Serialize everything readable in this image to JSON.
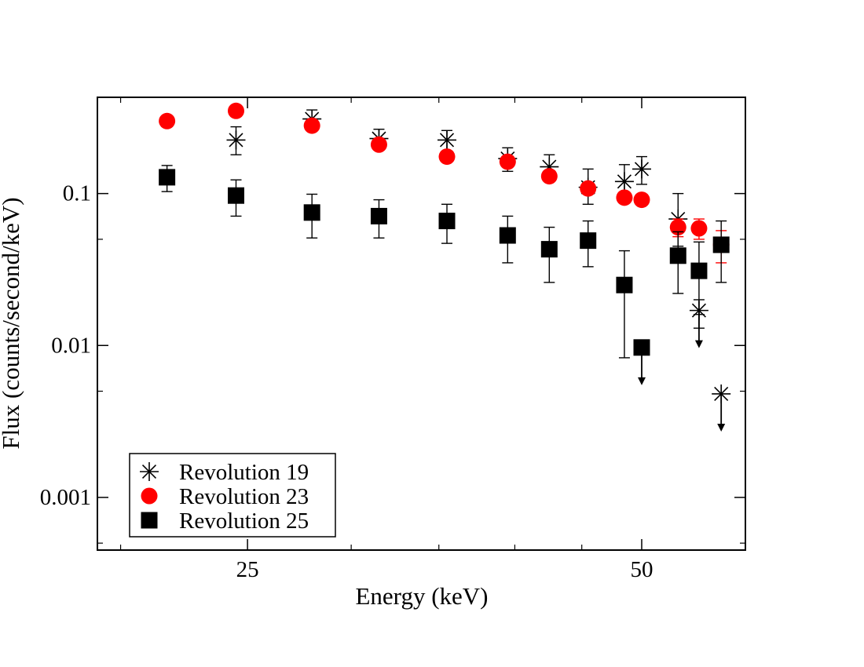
{
  "chart_data": {
    "type": "scatter",
    "title": "",
    "xlabel": "Energy (keV)",
    "ylabel": "Flux (counts/second/keV)",
    "x_scale": "log",
    "y_scale": "log",
    "xlim": [
      19.2,
      60
    ],
    "ylim": [
      0.00045,
      0.43
    ],
    "x_ticks": [
      {
        "value": 25,
        "label": "25"
      },
      {
        "value": 50,
        "label": "50"
      }
    ],
    "x_minor_ticks": [
      20,
      30,
      35,
      40,
      45
    ],
    "y_ticks": [
      {
        "value": 0.001,
        "label": "0.001"
      },
      {
        "value": 0.01,
        "label": "0.01"
      },
      {
        "value": 0.1,
        "label": "0.1"
      }
    ],
    "legend_position": "bottom-left",
    "series": [
      {
        "name": "Revolution 19",
        "marker": "asterisk",
        "color": "#000000",
        "points": [
          {
            "x": 24.5,
            "y": 0.225,
            "lo": 0.18,
            "hi": 0.275
          },
          {
            "x": 28.0,
            "y": 0.31,
            "lo": 0.27,
            "hi": 0.355
          },
          {
            "x": 31.5,
            "y": 0.23,
            "lo": 0.195,
            "hi": 0.265
          },
          {
            "x": 35.5,
            "y": 0.225,
            "lo": 0.19,
            "hi": 0.26
          },
          {
            "x": 39.5,
            "y": 0.17,
            "lo": 0.14,
            "hi": 0.2
          },
          {
            "x": 42.5,
            "y": 0.15,
            "lo": 0.12,
            "hi": 0.18
          },
          {
            "x": 45.5,
            "y": 0.11,
            "lo": 0.085,
            "hi": 0.145
          },
          {
            "x": 48.5,
            "y": 0.12,
            "lo": 0.09,
            "hi": 0.155
          },
          {
            "x": 50.0,
            "y": 0.145,
            "lo": 0.115,
            "hi": 0.175
          },
          {
            "x": 53.3,
            "y": 0.068,
            "lo": 0.045,
            "hi": 0.1
          },
          {
            "x": 55.3,
            "y": 0.017,
            "lo": 0.013,
            "hi": 0.02,
            "upper_limit": true
          },
          {
            "x": 57.5,
            "y": 0.0048,
            "upper_limit": true
          }
        ]
      },
      {
        "name": "Revolution 23",
        "marker": "circle",
        "color": "#ff0000",
        "points": [
          {
            "x": 21.7,
            "y": 0.3
          },
          {
            "x": 24.5,
            "y": 0.35
          },
          {
            "x": 28.0,
            "y": 0.28
          },
          {
            "x": 31.5,
            "y": 0.21
          },
          {
            "x": 35.5,
            "y": 0.175
          },
          {
            "x": 39.5,
            "y": 0.162
          },
          {
            "x": 42.5,
            "y": 0.13
          },
          {
            "x": 45.5,
            "y": 0.108
          },
          {
            "x": 48.5,
            "y": 0.094
          },
          {
            "x": 50.0,
            "y": 0.091
          },
          {
            "x": 53.3,
            "y": 0.06,
            "lo": 0.052,
            "hi": 0.068
          },
          {
            "x": 55.3,
            "y": 0.059,
            "lo": 0.05,
            "hi": 0.068
          },
          {
            "x": 57.5,
            "y": 0.046,
            "lo": 0.035,
            "hi": 0.057
          }
        ]
      },
      {
        "name": "Revolution 25",
        "marker": "square",
        "color": "#000000",
        "points": [
          {
            "x": 21.7,
            "y": 0.128,
            "lo": 0.103,
            "hi": 0.153
          },
          {
            "x": 24.5,
            "y": 0.097,
            "lo": 0.071,
            "hi": 0.123
          },
          {
            "x": 28.0,
            "y": 0.075,
            "lo": 0.051,
            "hi": 0.099
          },
          {
            "x": 31.5,
            "y": 0.071,
            "lo": 0.051,
            "hi": 0.091
          },
          {
            "x": 35.5,
            "y": 0.066,
            "lo": 0.047,
            "hi": 0.085
          },
          {
            "x": 39.5,
            "y": 0.053,
            "lo": 0.035,
            "hi": 0.071
          },
          {
            "x": 42.5,
            "y": 0.043,
            "lo": 0.026,
            "hi": 0.06
          },
          {
            "x": 45.5,
            "y": 0.049,
            "lo": 0.033,
            "hi": 0.066
          },
          {
            "x": 48.5,
            "y": 0.025,
            "lo": 0.0083,
            "hi": 0.042
          },
          {
            "x": 50.0,
            "y": 0.0097,
            "upper_limit": true
          },
          {
            "x": 53.3,
            "y": 0.039,
            "lo": 0.022,
            "hi": 0.056
          },
          {
            "x": 55.3,
            "y": 0.031,
            "lo": 0.016,
            "hi": 0.048
          },
          {
            "x": 57.5,
            "y": 0.046,
            "lo": 0.026,
            "hi": 0.066
          }
        ]
      }
    ]
  }
}
